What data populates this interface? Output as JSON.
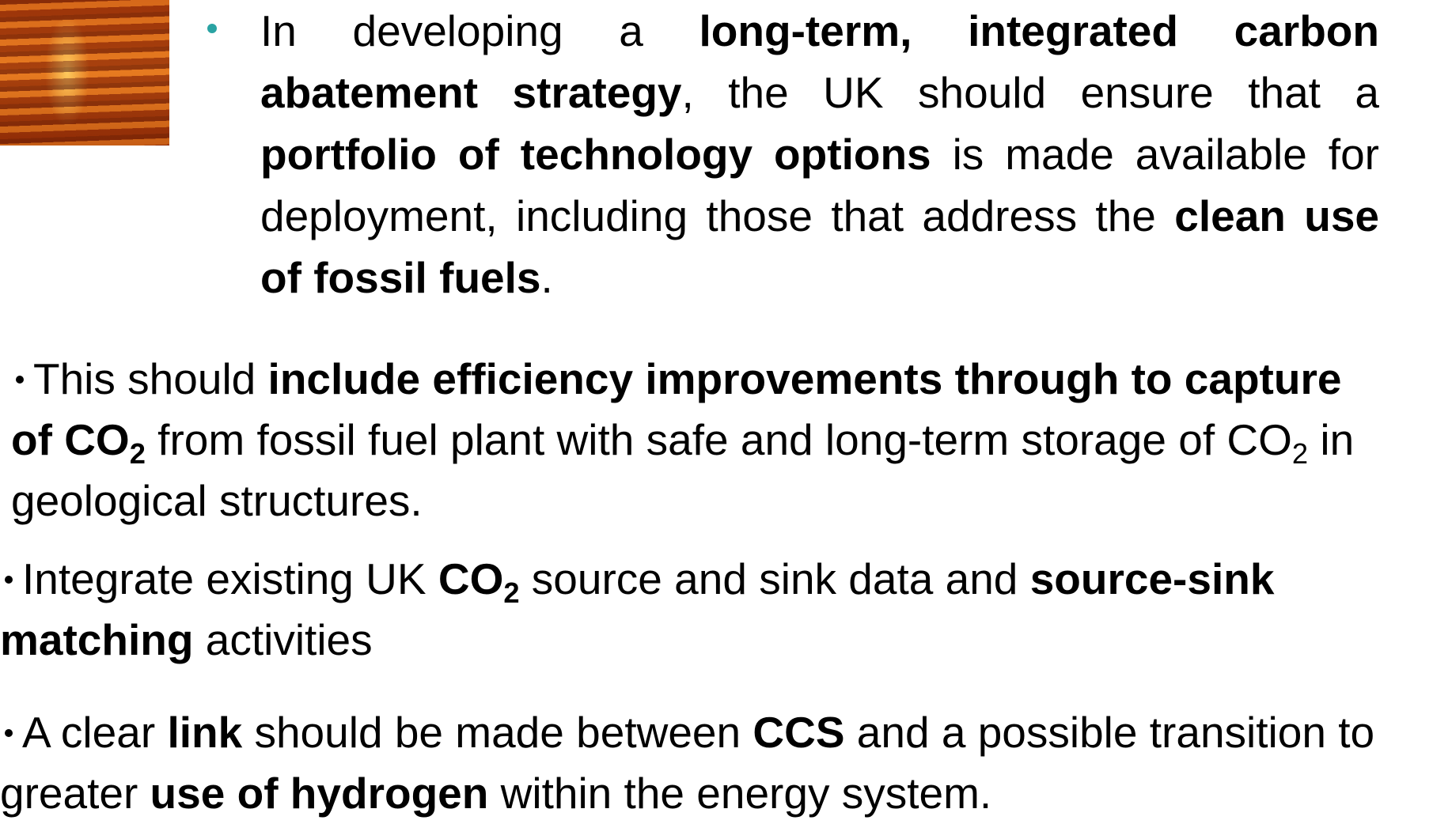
{
  "paragraphs": [
    {
      "runs": [
        {
          "text": "In developing a "
        },
        {
          "text": "long-term, integrated carbon abatement strategy",
          "bold": true
        },
        {
          "text": ", the UK should ensure that a "
        },
        {
          "text": "portfolio of technology options",
          "bold": true
        },
        {
          "text": " is made available for deployment, including those that address the "
        },
        {
          "text": "clean use of fossil fuels",
          "bold": true
        },
        {
          "text": "."
        }
      ]
    },
    {
      "runs": [
        {
          "text": "This should "
        },
        {
          "text": "include efficiency improvements through to capture of CO",
          "bold": true
        },
        {
          "text": "2",
          "bold": true,
          "sub": true
        },
        {
          "text": " from fossil fuel plant with safe and long-term storage of CO"
        },
        {
          "text": "2",
          "sub": true
        },
        {
          "text": " in geological structures."
        }
      ]
    },
    {
      "runs": [
        {
          "text": "Integrate existing UK "
        },
        {
          "text": "CO",
          "bold": true
        },
        {
          "text": "2",
          "bold": true,
          "sub": true
        },
        {
          "text": " source and sink data and "
        },
        {
          "text": "source-sink matching",
          "bold": true
        },
        {
          "text": " activities"
        }
      ]
    },
    {
      "runs": [
        {
          "text": "A clear "
        },
        {
          "text": "link",
          "bold": true
        },
        {
          "text": " should be made between "
        },
        {
          "text": "CCS",
          "bold": true
        },
        {
          "text": " and a possible transition to greater "
        },
        {
          "text": "use of hydrogen",
          "bold": true
        },
        {
          "text": " within the energy system."
        }
      ]
    }
  ]
}
